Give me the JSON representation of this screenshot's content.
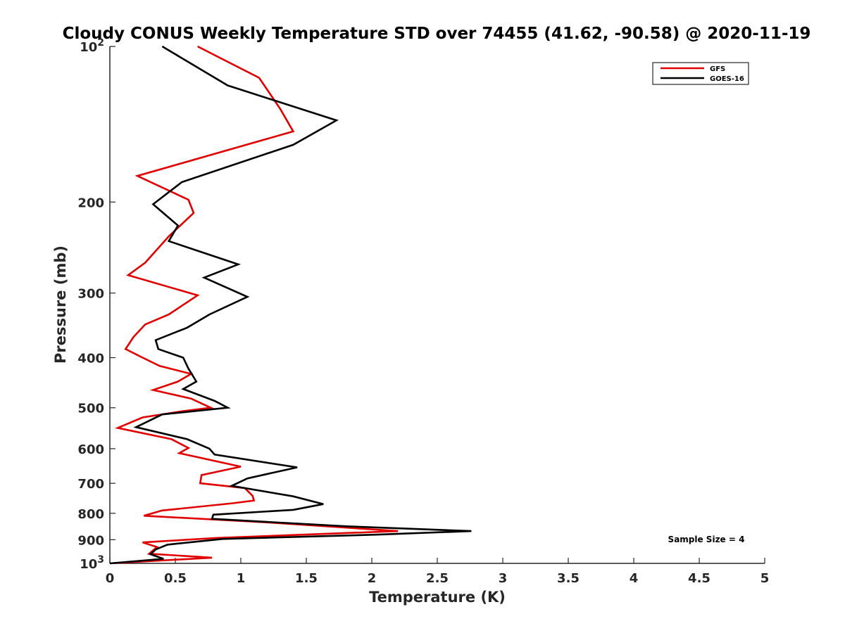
{
  "chart_data": {
    "type": "line",
    "title": "Cloudy CONUS Weekly Temperature STD over 74455 (41.62, -90.58) @ 2020-11-19",
    "xlabel": "Temperature (K)",
    "ylabel": "Pressure (mb)",
    "xlim": [
      0,
      5
    ],
    "ylim": [
      100,
      1000
    ],
    "y_scale": "log",
    "y_reversed": true,
    "x_ticks": [
      "0",
      "0.5",
      "1",
      "1.5",
      "2",
      "2.5",
      "3",
      "3.5",
      "4",
      "4.5",
      "5"
    ],
    "y_ticks": [
      {
        "value": 100,
        "base": "10",
        "exp": "2"
      },
      {
        "value": 200,
        "label": "200"
      },
      {
        "value": 300,
        "label": "300"
      },
      {
        "value": 400,
        "label": "400"
      },
      {
        "value": 500,
        "label": "500"
      },
      {
        "value": 600,
        "label": "600"
      },
      {
        "value": 700,
        "label": "700"
      },
      {
        "value": 800,
        "label": "800"
      },
      {
        "value": 900,
        "label": "900"
      },
      {
        "value": 1000,
        "base": "10",
        "exp": "3"
      }
    ],
    "grid": false,
    "legend_position": "top-right",
    "annotation": "Sample Size = 4",
    "series": [
      {
        "name": "GFS",
        "color": "#e00000",
        "points": [
          [
            0.67,
            100
          ],
          [
            1.14,
            115
          ],
          [
            1.3,
            132
          ],
          [
            1.4,
            146
          ],
          [
            0.21,
            178
          ],
          [
            0.6,
            198
          ],
          [
            0.64,
            210
          ],
          [
            0.45,
            233
          ],
          [
            0.27,
            262
          ],
          [
            0.14,
            277
          ],
          [
            0.67,
            303
          ],
          [
            0.45,
            330
          ],
          [
            0.27,
            345
          ],
          [
            0.18,
            365
          ],
          [
            0.12,
            385
          ],
          [
            0.25,
            400
          ],
          [
            0.38,
            415
          ],
          [
            0.62,
            430
          ],
          [
            0.52,
            445
          ],
          [
            0.33,
            462
          ],
          [
            0.62,
            480
          ],
          [
            0.77,
            500
          ],
          [
            0.55,
            508
          ],
          [
            0.25,
            522
          ],
          [
            0.06,
            547
          ],
          [
            0.47,
            575
          ],
          [
            0.6,
            598
          ],
          [
            0.53,
            612
          ],
          [
            1.0,
            650
          ],
          [
            0.7,
            675
          ],
          [
            0.69,
            700
          ],
          [
            1.03,
            715
          ],
          [
            1.09,
            740
          ],
          [
            1.1,
            756
          ],
          [
            0.94,
            765
          ],
          [
            0.4,
            790
          ],
          [
            0.26,
            809
          ],
          [
            1.2,
            833
          ],
          [
            2.2,
            866
          ],
          [
            0.81,
            893
          ],
          [
            0.25,
            911
          ],
          [
            0.36,
            930
          ],
          [
            0.3,
            958
          ],
          [
            0.78,
            975
          ],
          [
            0.0,
            1000
          ]
        ]
      },
      {
        "name": "GOES-16",
        "color": "#000000",
        "points": [
          [
            0.4,
            100
          ],
          [
            0.9,
            119
          ],
          [
            1.73,
            139
          ],
          [
            1.4,
            155
          ],
          [
            0.55,
            183
          ],
          [
            0.33,
            202
          ],
          [
            0.52,
            222
          ],
          [
            0.45,
            238
          ],
          [
            0.98,
            264
          ],
          [
            0.72,
            280
          ],
          [
            1.05,
            305
          ],
          [
            0.76,
            330
          ],
          [
            0.59,
            350
          ],
          [
            0.35,
            370
          ],
          [
            0.37,
            385
          ],
          [
            0.56,
            400
          ],
          [
            0.6,
            420
          ],
          [
            0.66,
            445
          ],
          [
            0.56,
            460
          ],
          [
            0.8,
            485
          ],
          [
            0.9,
            500
          ],
          [
            0.4,
            515
          ],
          [
            0.2,
            545
          ],
          [
            0.59,
            575
          ],
          [
            0.76,
            600
          ],
          [
            0.8,
            616
          ],
          [
            1.43,
            652
          ],
          [
            1.05,
            685
          ],
          [
            0.93,
            708
          ],
          [
            1.4,
            742
          ],
          [
            1.63,
            768
          ],
          [
            1.4,
            788
          ],
          [
            0.79,
            805
          ],
          [
            0.78,
            820
          ],
          [
            1.82,
            848
          ],
          [
            2.76,
            866
          ],
          [
            2.03,
            880
          ],
          [
            0.86,
            897
          ],
          [
            0.44,
            920
          ],
          [
            0.35,
            940
          ],
          [
            0.31,
            960
          ],
          [
            0.41,
            980
          ],
          [
            0.0,
            1000
          ]
        ]
      }
    ]
  }
}
